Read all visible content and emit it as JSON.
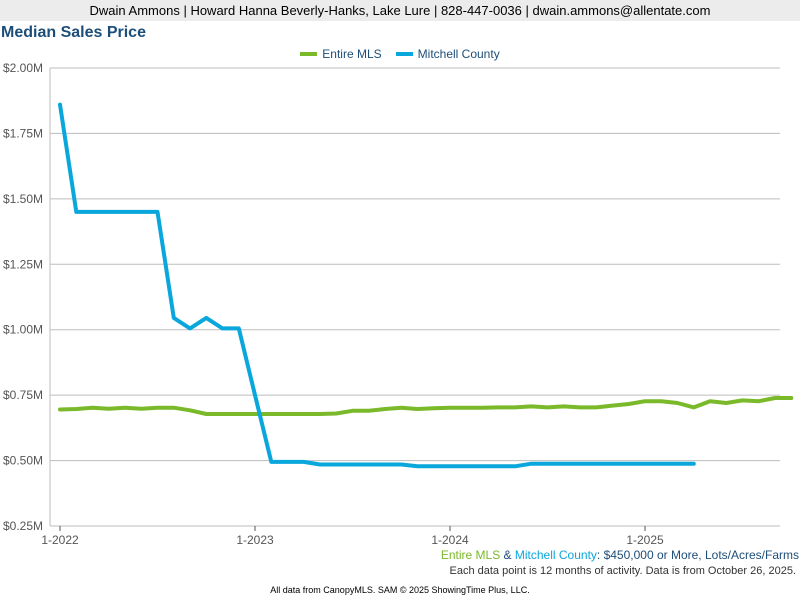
{
  "header": {
    "agent_line": "Dwain Ammons | Howard Hanna Beverly-Hanks, Lake Lure | 828-447-0036 | dwain.ammons@allentate.com"
  },
  "chart_data": {
    "type": "line",
    "title": "Median Sales Price",
    "xlabel": "",
    "ylabel": "",
    "x_start": "2022-01",
    "x_end": "2025-10",
    "xticks": [
      "1-2022",
      "1-2023",
      "1-2024",
      "1-2025"
    ],
    "ylim": [
      0.25,
      2.0
    ],
    "yticks": [
      0.25,
      0.5,
      0.75,
      1.0,
      1.25,
      1.5,
      1.75,
      2.0
    ],
    "ytick_labels": [
      "$0.25M",
      "$0.50M",
      "$0.75M",
      "$1.00M",
      "$1.25M",
      "$1.50M",
      "$1.75M",
      "$2.00M"
    ],
    "grid": true,
    "legend_position": "top-center",
    "series": [
      {
        "name": "Entire MLS",
        "color": "#7ab929",
        "x": [
          "2022-01",
          "2022-02",
          "2022-03",
          "2022-04",
          "2022-05",
          "2022-06",
          "2022-07",
          "2022-08",
          "2022-09",
          "2022-10",
          "2022-11",
          "2022-12",
          "2023-01",
          "2023-02",
          "2023-03",
          "2023-04",
          "2023-05",
          "2023-06",
          "2023-07",
          "2023-08",
          "2023-09",
          "2023-10",
          "2023-11",
          "2023-12",
          "2024-01",
          "2024-02",
          "2024-03",
          "2024-04",
          "2024-05",
          "2024-06",
          "2024-07",
          "2024-08",
          "2024-09",
          "2024-10",
          "2024-11",
          "2024-12",
          "2025-01",
          "2025-02",
          "2025-03",
          "2025-04",
          "2025-05",
          "2025-06",
          "2025-07",
          "2025-08",
          "2025-09",
          "2025-10"
        ],
        "values": [
          0.695,
          0.697,
          0.702,
          0.698,
          0.702,
          0.698,
          0.702,
          0.702,
          0.692,
          0.678,
          0.678,
          0.678,
          0.678,
          0.678,
          0.678,
          0.678,
          0.678,
          0.68,
          0.69,
          0.69,
          0.697,
          0.702,
          0.697,
          0.7,
          0.702,
          0.702,
          0.702,
          0.703,
          0.703,
          0.707,
          0.703,
          0.707,
          0.703,
          0.703,
          0.71,
          0.716,
          0.727,
          0.727,
          0.72,
          0.703,
          0.727,
          0.72,
          0.73,
          0.727,
          0.739,
          0.739
        ]
      },
      {
        "name": "Mitchell County",
        "color": "#0aa7dc",
        "x": [
          "2022-01",
          "2022-02",
          "2022-03",
          "2022-04",
          "2022-05",
          "2022-06",
          "2022-07",
          "2022-08",
          "2022-09",
          "2022-10",
          "2022-11",
          "2022-12",
          "2023-01",
          "2023-02",
          "2023-03",
          "2023-04",
          "2023-05",
          "2023-06",
          "2023-07",
          "2023-08",
          "2023-09",
          "2023-10",
          "2023-11",
          "2023-12",
          "2024-01",
          "2024-02",
          "2024-03",
          "2024-04",
          "2024-05",
          "2024-06",
          "2024-07",
          "2024-08",
          "2024-09",
          "2024-10",
          "2024-11",
          "2024-12",
          "2025-01",
          "2025-02",
          "2025-03",
          "2025-04"
        ],
        "values": [
          1.86,
          1.45,
          1.45,
          1.45,
          1.45,
          1.45,
          1.45,
          1.045,
          1.005,
          1.045,
          1.005,
          1.005,
          0.75,
          0.495,
          0.495,
          0.495,
          0.485,
          0.485,
          0.485,
          0.485,
          0.485,
          0.485,
          0.478,
          0.478,
          0.478,
          0.478,
          0.478,
          0.478,
          0.478,
          0.488,
          0.488,
          0.488,
          0.488,
          0.488,
          0.488,
          0.488,
          0.488,
          0.488,
          0.488,
          0.488
        ]
      }
    ]
  },
  "criteria": {
    "entire_label": "Entire MLS",
    "amp": " & ",
    "county_label": "Mitchell County",
    "filter_text": ": $450,000 or More, Lots/Acres/Farms"
  },
  "notes": {
    "activity": "Each data point is 12 months of activity. Data is from October 26, 2025.",
    "footer": "All data from CanopyMLS. SAM © 2025 ShowingTime Plus, LLC."
  }
}
